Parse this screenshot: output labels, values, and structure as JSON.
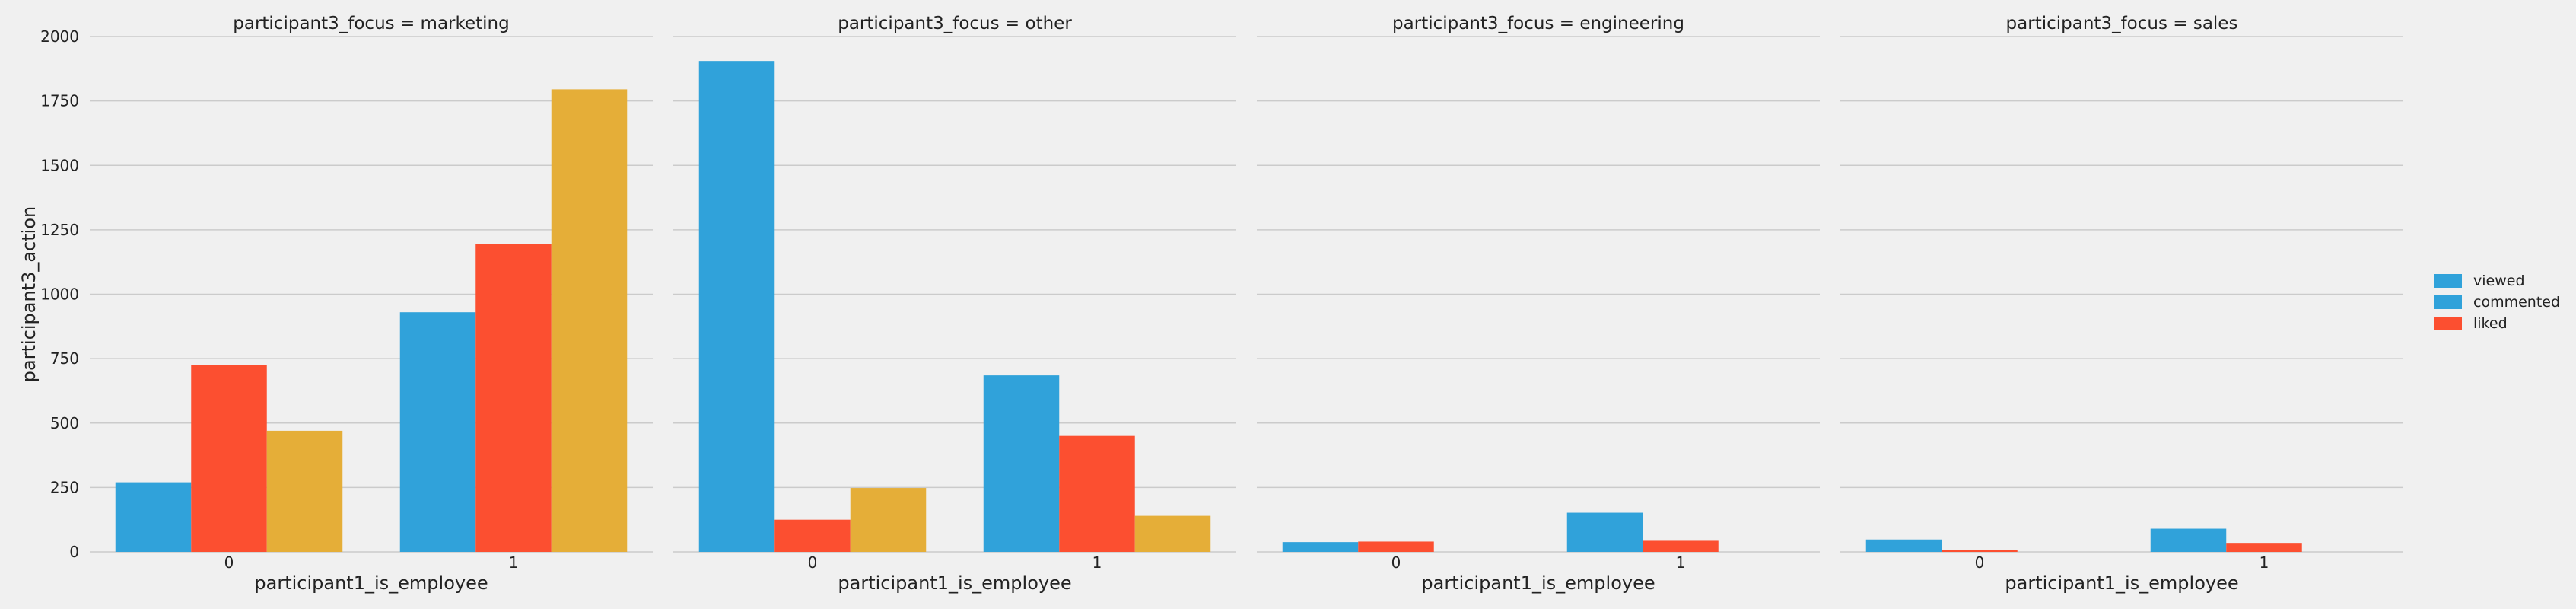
{
  "chart_data": {
    "type": "bar",
    "facet_variable": "participant3_focus",
    "xlabel": "participant1_is_employee",
    "ylabel": "participant3_action",
    "ylim": [
      0,
      2000
    ],
    "yticks": [
      0,
      250,
      500,
      750,
      1000,
      1250,
      1500,
      1750,
      2000
    ],
    "grid": true,
    "legend_placement": "right",
    "legend": [
      {
        "label": "viewed",
        "color": "#30a2da"
      },
      {
        "label": "commented",
        "color": "#30a2da"
      },
      {
        "label": "liked",
        "color": "#fc4f30"
      }
    ],
    "bar_colors": [
      "#30a2da",
      "#fc4f30",
      "#e5ae38"
    ],
    "facets": [
      {
        "title": "participant3_focus = marketing",
        "categories": [
          "0",
          "1"
        ],
        "series": [
          {
            "values": [
              270,
              930
            ]
          },
          {
            "values": [
              725,
              1195
            ]
          },
          {
            "values": [
              470,
              1795
            ]
          }
        ]
      },
      {
        "title": "participant3_focus = other",
        "categories": [
          "0",
          "1"
        ],
        "series": [
          {
            "values": [
              1905,
              685
            ]
          },
          {
            "values": [
              125,
              450
            ]
          },
          {
            "values": [
              248,
              140
            ]
          }
        ]
      },
      {
        "title": "participant3_focus = engineering",
        "categories": [
          "0",
          "1"
        ],
        "series": [
          {
            "values": [
              38,
              152
            ]
          },
          {
            "values": [
              40,
              43
            ]
          }
        ]
      },
      {
        "title": "participant3_focus = sales",
        "categories": [
          "0",
          "1"
        ],
        "series": [
          {
            "values": [
              48,
              90
            ]
          },
          {
            "values": [
              8,
              35
            ]
          }
        ]
      }
    ]
  }
}
